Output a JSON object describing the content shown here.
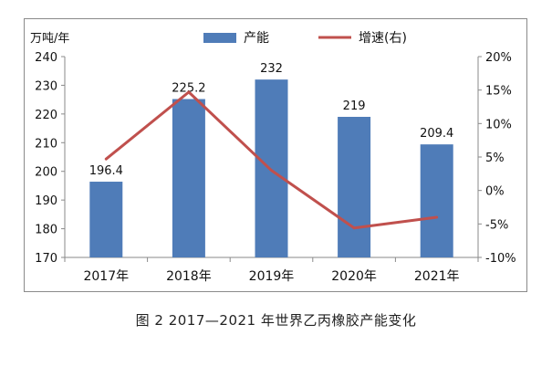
{
  "caption": "图 2  2017—2021 年世界乙丙橡胶产能变化",
  "colors": {
    "bar": "#4f7cb8",
    "line": "#c0504d",
    "axis": "#8a8a8a"
  },
  "chart_data": {
    "type": "bar",
    "categories": [
      "2017年",
      "2018年",
      "2019年",
      "2020年",
      "2021年"
    ],
    "y_left_unit": "万吨/年",
    "y_left_ticks": [
      "240",
      "230",
      "220",
      "210",
      "200",
      "190",
      "180",
      "170"
    ],
    "y_left_range": [
      170,
      240
    ],
    "y_right_ticks": [
      "20%",
      "15%",
      "10%",
      "5%",
      "0%",
      "-5%",
      "-10%"
    ],
    "y_right_range": [
      -10,
      20
    ],
    "series": [
      {
        "name": "产能",
        "type": "bar",
        "axis": "left",
        "values": [
          196.4,
          225.2,
          232,
          219,
          209.4
        ],
        "labels": [
          "196.4",
          "225.2",
          "232",
          "219",
          "209.4"
        ]
      },
      {
        "name": "增速(右)",
        "type": "line",
        "axis": "right",
        "values": [
          4.7,
          14.7,
          3.0,
          -5.6,
          -4.0
        ]
      }
    ],
    "legend_position": "top",
    "grid": false
  }
}
